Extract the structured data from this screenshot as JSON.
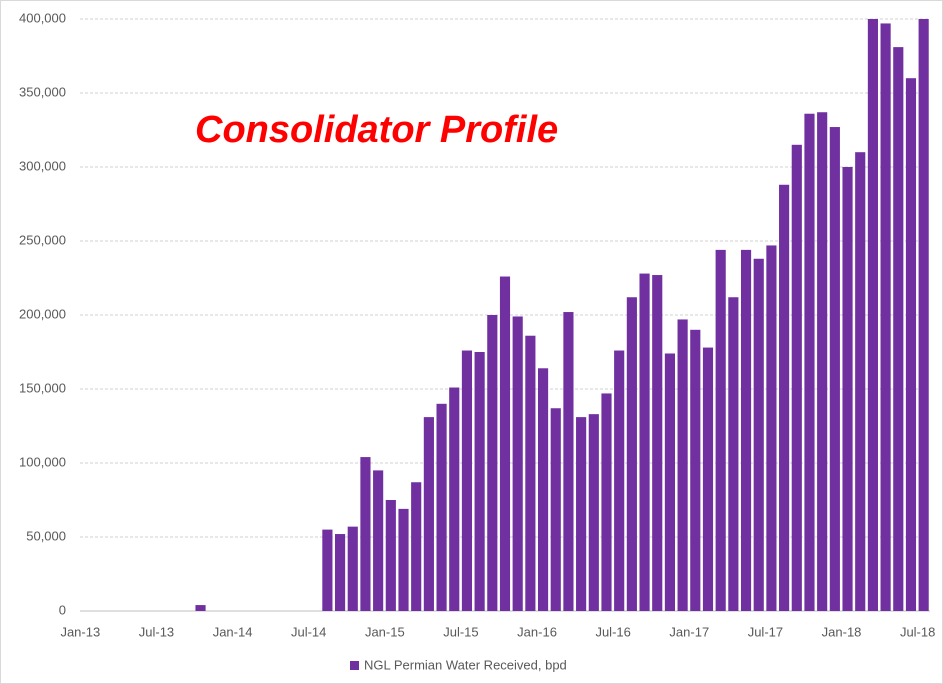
{
  "chart_data": {
    "type": "bar",
    "annotation": "Consolidator Profile",
    "categories": [
      "Jan-13",
      null,
      null,
      null,
      null,
      null,
      "Jul-13",
      null,
      null,
      null,
      null,
      null,
      "Jan-14",
      null,
      null,
      null,
      null,
      null,
      "Jul-14",
      null,
      null,
      null,
      null,
      null,
      "Jan-15",
      null,
      null,
      null,
      null,
      null,
      "Jul-15",
      null,
      null,
      null,
      null,
      null,
      "Jan-16",
      null,
      null,
      null,
      null,
      null,
      "Jul-16",
      null,
      null,
      null,
      null,
      null,
      "Jan-17",
      null,
      null,
      null,
      null,
      null,
      "Jul-17",
      null,
      null,
      null,
      null,
      null,
      "Jan-18",
      null,
      null,
      null,
      null,
      null,
      "Jul-18"
    ],
    "series": [
      {
        "name": "NGL Permian Water Received, bpd",
        "color": "#7030a0",
        "values": [
          null,
          null,
          null,
          null,
          null,
          null,
          null,
          null,
          null,
          4000,
          null,
          null,
          null,
          null,
          null,
          null,
          null,
          null,
          null,
          55000,
          52000,
          57000,
          104000,
          95000,
          75000,
          69000,
          87000,
          131000,
          140000,
          151000,
          176000,
          175000,
          200000,
          226000,
          199000,
          186000,
          164000,
          137000,
          202000,
          131000,
          133000,
          147000,
          176000,
          212000,
          228000,
          227000,
          174000,
          197000,
          190000,
          178000,
          244000,
          212000,
          244000,
          238000,
          247000,
          288000,
          315000,
          336000,
          337000,
          327000,
          300000,
          310000,
          400000,
          397000,
          381000,
          360000,
          400000
        ]
      }
    ],
    "ylim": [
      0,
      400000
    ],
    "yticks": [
      0,
      {
        "value": 50000,
        "label": "50,000"
      },
      {
        "value": 100000,
        "label": "100,000"
      },
      {
        "value": 150000,
        "label": "150,000"
      },
      {
        "value": 200000,
        "label": "200,000"
      },
      {
        "value": 250000,
        "label": "250,000"
      },
      {
        "value": 300000,
        "label": "300,000"
      },
      {
        "value": 350000,
        "label": "350,000"
      },
      {
        "value": 400000,
        "label": "400,000"
      }
    ],
    "grid": true,
    "legend": "bottom"
  }
}
